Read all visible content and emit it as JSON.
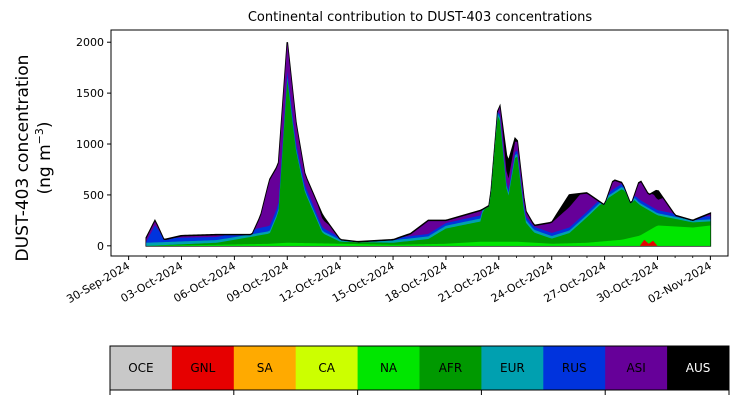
{
  "chart_data": {
    "type": "area",
    "stacked": true,
    "title": "Continental contribution to DUST-403 concentrations",
    "ylabel_line1": "DUST-403 concentration",
    "ylabel_line2": "(ng m",
    "ylabel_sup": "−3",
    "ylabel_close": ")",
    "ylim": [
      -100,
      2120
    ],
    "yticks": [
      0,
      500,
      1000,
      1500,
      2000
    ],
    "x_range_days": [
      "2024-09-29",
      "2024-11-03"
    ],
    "xticks": [
      "30-Sep-2024",
      "03-Oct-2024",
      "06-Oct-2024",
      "09-Oct-2024",
      "12-Oct-2024",
      "15-Oct-2024",
      "18-Oct-2024",
      "21-Oct-2024",
      "24-Oct-2024",
      "27-Oct-2024",
      "30-Oct-2024",
      "02-Nov-2024"
    ],
    "legend": [
      "OCE",
      "GNL",
      "SA",
      "CA",
      "NA",
      "AFR",
      "EUR",
      "RUS",
      "ASI",
      "AUS"
    ],
    "colors": {
      "OCE": "#c8c8c8",
      "GNL": "#e60000",
      "SA": "#ffaa00",
      "CA": "#ccff00",
      "NA": "#00e600",
      "AFR": "#009900",
      "EUR": "#00a0b0",
      "RUS": "#0033dd",
      "ASI": "#660099",
      "AUS": "#000000"
    },
    "legend_text_colors": {
      "OCE": "#000000",
      "GNL": "#000000",
      "SA": "#000000",
      "CA": "#000000",
      "NA": "#000000",
      "AFR": "#000000",
      "EUR": "#000000",
      "RUS": "#000000",
      "ASI": "#000000",
      "AUS": "#ffffff"
    },
    "series": [
      {
        "name": "GNL",
        "x": [
          "2024-10-29",
          "2024-10-29T06",
          "2024-10-29T12",
          "2024-10-29T18",
          "2024-10-30"
        ],
        "values": [
          0,
          60,
          20,
          50,
          0
        ]
      },
      {
        "name": "NA",
        "x": [
          "2024-10-01",
          "2024-10-05",
          "2024-10-08",
          "2024-10-09",
          "2024-10-12",
          "2024-10-15",
          "2024-10-18",
          "2024-10-20",
          "2024-10-22",
          "2024-10-24",
          "2024-10-26",
          "2024-10-28",
          "2024-10-29",
          "2024-10-30",
          "2024-11-01",
          "2024-11-02"
        ],
        "values": [
          0,
          10,
          20,
          30,
          20,
          10,
          20,
          40,
          40,
          20,
          30,
          60,
          100,
          200,
          180,
          200
        ]
      },
      {
        "name": "AFR",
        "x": [
          "2024-10-01",
          "2024-10-05",
          "2024-10-08",
          "2024-10-08T12",
          "2024-10-09",
          "2024-10-09T12",
          "2024-10-10",
          "2024-10-11",
          "2024-10-12",
          "2024-10-15",
          "2024-10-17",
          "2024-10-18",
          "2024-10-20",
          "2024-10-21",
          "2024-10-21T12",
          "2024-10-22",
          "2024-10-22T12",
          "2024-10-23",
          "2024-10-24",
          "2024-10-25",
          "2024-10-26",
          "2024-10-27",
          "2024-10-28",
          "2024-10-29",
          "2024-10-30",
          "2024-11-01",
          "2024-11-02"
        ],
        "values": [
          0,
          20,
          100,
          300,
          1600,
          900,
          500,
          100,
          20,
          20,
          50,
          150,
          200,
          1300,
          400,
          900,
          200,
          100,
          50,
          100,
          250,
          400,
          500,
          300,
          100,
          50,
          40
        ]
      },
      {
        "name": "EUR",
        "x": [
          "2024-10-01",
          "2024-10-12",
          "2024-10-20",
          "2024-10-30",
          "2024-11-02"
        ],
        "values": [
          30,
          20,
          30,
          20,
          20
        ]
      },
      {
        "name": "RUS",
        "x": [
          "2024-10-01",
          "2024-10-01T12",
          "2024-10-02",
          "2024-10-05",
          "2024-10-09",
          "2024-10-12",
          "2024-10-15",
          "2024-10-20",
          "2024-10-25",
          "2024-10-30",
          "2024-11-02"
        ],
        "values": [
          10,
          170,
          40,
          30,
          60,
          20,
          20,
          30,
          30,
          30,
          30
        ]
      },
      {
        "name": "ASI",
        "x": [
          "2024-10-01",
          "2024-10-02",
          "2024-10-05",
          "2024-10-07",
          "2024-10-08",
          "2024-10-09",
          "2024-10-10",
          "2024-10-11",
          "2024-10-12",
          "2024-10-15",
          "2024-10-17",
          "2024-10-18",
          "2024-10-19",
          "2024-10-20",
          "2024-10-21",
          "2024-10-22",
          "2024-10-23",
          "2024-10-24",
          "2024-10-25",
          "2024-10-26",
          "2024-10-27",
          "2024-10-28",
          "2024-10-29",
          "2024-10-30",
          "2024-10-31",
          "2024-11-01",
          "2024-11-02"
        ],
        "values": [
          30,
          50,
          60,
          100,
          500,
          300,
          200,
          80,
          30,
          50,
          200,
          120,
          150,
          150,
          120,
          100,
          150,
          100,
          200,
          250,
          150,
          100,
          250,
          100,
          200,
          100,
          60
        ]
      }
    ],
    "total": {
      "name": "AUS",
      "x": [
        "2024-10-01",
        "2024-10-01T12",
        "2024-10-02",
        "2024-10-03",
        "2024-10-05",
        "2024-10-07",
        "2024-10-07T12",
        "2024-10-08",
        "2024-10-08T12",
        "2024-10-09",
        "2024-10-09T12",
        "2024-10-10",
        "2024-10-11",
        "2024-10-12",
        "2024-10-13",
        "2024-10-15",
        "2024-10-16",
        "2024-10-17",
        "2024-10-18",
        "2024-10-19",
        "2024-10-20",
        "2024-10-20T12",
        "2024-10-21",
        "2024-10-21T12",
        "2024-10-22",
        "2024-10-22T12",
        "2024-10-23",
        "2024-10-24",
        "2024-10-25",
        "2024-10-26",
        "2024-10-27",
        "2024-10-27T12",
        "2024-10-28",
        "2024-10-28T12",
        "2024-10-29",
        "2024-10-29T12",
        "2024-10-30",
        "2024-10-31",
        "2024-11-01",
        "2024-11-02"
      ],
      "values": [
        80,
        250,
        60,
        100,
        110,
        110,
        300,
        650,
        800,
        2000,
        1200,
        700,
        300,
        60,
        40,
        60,
        120,
        250,
        250,
        300,
        350,
        400,
        1450,
        800,
        1100,
        350,
        200,
        230,
        500,
        520,
        400,
        650,
        620,
        400,
        650,
        500,
        550,
        300,
        250,
        320
      ]
    }
  }
}
